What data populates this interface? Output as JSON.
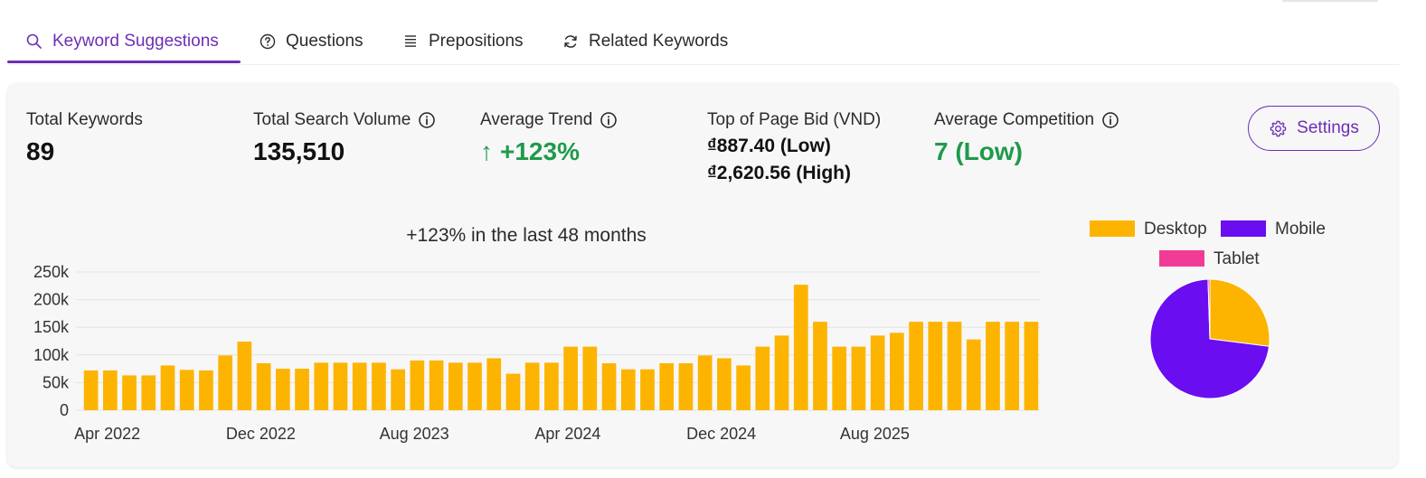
{
  "tabs": [
    {
      "label": "Keyword Suggestions",
      "icon": "search-icon",
      "active": true
    },
    {
      "label": "Questions",
      "icon": "question-circle-icon",
      "active": false
    },
    {
      "label": "Prepositions",
      "icon": "list-icon",
      "active": false
    },
    {
      "label": "Related Keywords",
      "icon": "refresh-icon",
      "active": false
    }
  ],
  "stats": {
    "total_keywords": {
      "label": "Total Keywords",
      "value": "89"
    },
    "total_search_volume": {
      "label": "Total Search Volume",
      "value": "135,510"
    },
    "average_trend": {
      "label": "Average Trend",
      "arrow": "↑",
      "value": "+123%"
    },
    "top_bid": {
      "label": "Top of Page Bid (VND)",
      "low": "₫887.40 (Low)",
      "high": "₫2,620.56 (High)"
    },
    "average_competition": {
      "label": "Average Competition",
      "value": "7 (Low)"
    }
  },
  "settings_label": "Settings",
  "colors": {
    "accent": "#6b2fb5",
    "bar": "#FDB400",
    "positive": "#1f9a4b",
    "desktop": "#FDB400",
    "mobile": "#6A0DF0",
    "tablet": "#F03C96"
  },
  "chart_data": [
    {
      "type": "bar",
      "title": "+123% in the last 48 months",
      "xlabel": "",
      "ylabel": "",
      "ylim": [
        0,
        250000
      ],
      "yticks": [
        "0",
        "50k",
        "100k",
        "150k",
        "200k",
        "250k"
      ],
      "ytick_values": [
        0,
        50000,
        100000,
        150000,
        200000,
        250000
      ],
      "xticks": [
        "Apr 2022",
        "Dec 2022",
        "Aug 2023",
        "Apr 2024",
        "Dec 2024",
        "Aug 2025"
      ],
      "xtick_indices": [
        0,
        8,
        16,
        24,
        32,
        40
      ],
      "grid": true,
      "categories": [
        "Apr 2022",
        "May 2022",
        "Jun 2022",
        "Jul 2022",
        "Aug 2022",
        "Sep 2022",
        "Oct 2022",
        "Nov 2022",
        "Dec 2022",
        "Jan 2023",
        "Feb 2023",
        "Mar 2023",
        "Apr 2023",
        "May 2023",
        "Jun 2023",
        "Jul 2023",
        "Aug 2023",
        "Sep 2023",
        "Oct 2023",
        "Nov 2023",
        "Dec 2023",
        "Jan 2024",
        "Feb 2024",
        "Mar 2024",
        "Apr 2024",
        "May 2024",
        "Jun 2024",
        "Jul 2024",
        "Aug 2024",
        "Sep 2024",
        "Oct 2024",
        "Nov 2024",
        "Dec 2024",
        "Jan 2025",
        "Feb 2025",
        "Mar 2025",
        "Apr 2025",
        "May 2025",
        "Jun 2025",
        "Jul 2025",
        "Aug 2025",
        "Sep 2025",
        "Oct 2025",
        "Nov 2025",
        "Dec 2025",
        "Jan 2026",
        "Feb 2026",
        "Mar 2026",
        "Apr 2026",
        "May 2026"
      ],
      "values": [
        72000,
        72000,
        63000,
        63000,
        81000,
        73000,
        72000,
        99000,
        124000,
        85000,
        75000,
        75000,
        86000,
        86000,
        86000,
        86000,
        74000,
        90000,
        90000,
        86000,
        86000,
        94000,
        66000,
        86000,
        86000,
        115000,
        115000,
        85000,
        74000,
        74000,
        85000,
        85000,
        99000,
        94000,
        81000,
        115000,
        135000,
        227000,
        160000,
        115000,
        115000,
        135000,
        140000,
        160000,
        160000,
        160000,
        128000,
        160000,
        160000,
        160000
      ]
    },
    {
      "type": "pie",
      "legend": [
        "Desktop",
        "Mobile",
        "Tablet"
      ],
      "values": [
        27,
        72.5,
        0.5
      ],
      "legend_position": "top"
    }
  ]
}
